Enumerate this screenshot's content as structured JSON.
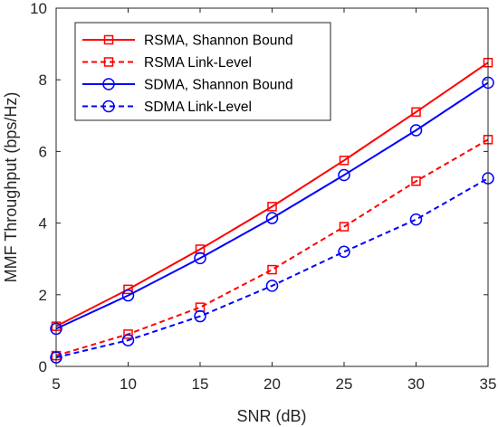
{
  "chart_data": {
    "type": "line",
    "title": "",
    "xlabel": "SNR (dB)",
    "ylabel": "MMF Throughput (bps/Hz)",
    "xlim": [
      5,
      35
    ],
    "ylim": [
      0,
      10
    ],
    "xticks": [
      5,
      10,
      15,
      20,
      25,
      30,
      35
    ],
    "yticks": [
      0,
      2,
      4,
      6,
      8,
      10
    ],
    "grid": false,
    "legend_position": "top-left",
    "x": [
      5,
      10,
      15,
      20,
      25,
      30,
      35
    ],
    "series": [
      {
        "name": "RSMA, Shannon Bound",
        "color": "#ff0000",
        "line": "solid",
        "marker": "square",
        "values": [
          1.12,
          2.15,
          3.27,
          4.46,
          5.75,
          7.1,
          8.48
        ]
      },
      {
        "name": "RSMA Link-Level",
        "color": "#ff0000",
        "line": "dashed",
        "marker": "square",
        "values": [
          0.3,
          0.9,
          1.65,
          2.7,
          3.9,
          5.17,
          6.33
        ]
      },
      {
        "name": "SDMA, Shannon Bound",
        "color": "#0000ff",
        "line": "solid",
        "marker": "circle",
        "values": [
          1.05,
          1.98,
          3.02,
          4.14,
          5.34,
          6.59,
          7.92
        ]
      },
      {
        "name": "SDMA Link-Level",
        "color": "#0000ff",
        "line": "dashed",
        "marker": "circle",
        "values": [
          0.25,
          0.73,
          1.4,
          2.25,
          3.2,
          4.1,
          5.25
        ]
      }
    ]
  }
}
